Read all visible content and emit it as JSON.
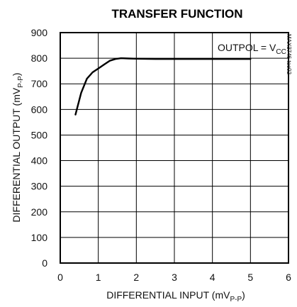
{
  "chart_data": {
    "type": "line",
    "title": "TRANSFER FUNCTION",
    "xlabel": "DIFFERENTIAL INPUT (mV",
    "xlabel_sub": "P-P",
    "xlabel_end": ")",
    "ylabel": "DIFFERENTIAL OUTPUT (mV",
    "ylabel_sub": "P-P",
    "ylabel_end": ")",
    "xlim": [
      0,
      6
    ],
    "ylim": [
      0,
      900
    ],
    "xticks": [
      "0",
      "1",
      "2",
      "3",
      "4",
      "5",
      "6"
    ],
    "yticks": [
      "0",
      "100",
      "200",
      "300",
      "400",
      "500",
      "600",
      "700",
      "800",
      "900"
    ],
    "grid": true,
    "annotation": "OUTPOL = V",
    "annotation_sub": "CC",
    "figure_code": "MAX3746 toc02",
    "series": [
      {
        "x": [
          0.4,
          0.55,
          0.7,
          0.85,
          1.0,
          1.15,
          1.3,
          1.45,
          1.6,
          1.8,
          2.0,
          2.5,
          3.0,
          3.5,
          4.0,
          4.5,
          5.0
        ],
        "y": [
          580,
          665,
          720,
          745,
          760,
          775,
          790,
          797,
          800,
          799,
          798,
          797,
          797,
          797,
          797,
          797,
          797
        ]
      }
    ]
  }
}
